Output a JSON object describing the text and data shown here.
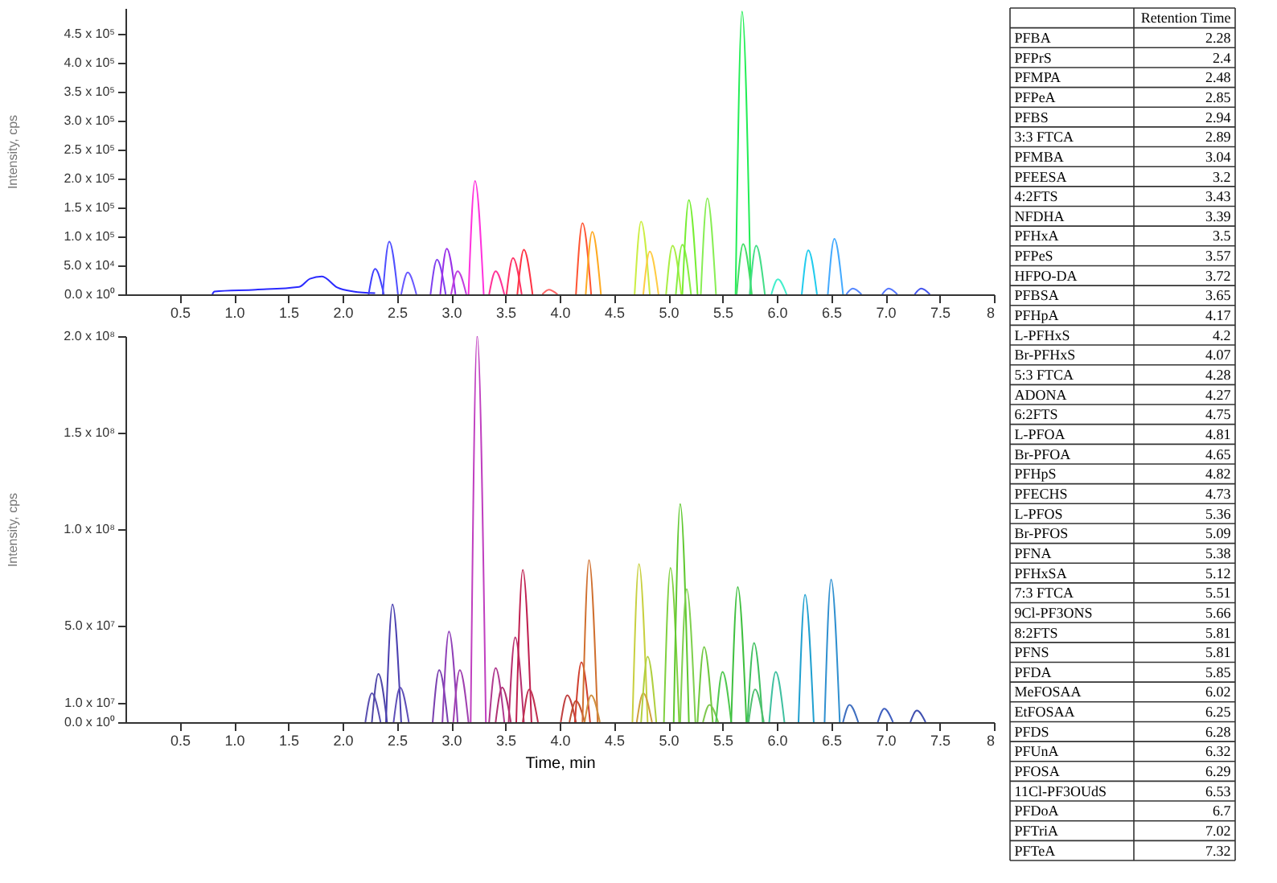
{
  "chart_data": [
    {
      "type": "line",
      "ylabel": "Intensity, cps",
      "xlim": [
        0,
        8
      ],
      "xticks": [
        0.5,
        {
          "value": 1,
          "label": "1.0"
        },
        1.5,
        {
          "value": 2,
          "label": "2.0"
        },
        2.5,
        {
          "value": 3,
          "label": "3.0"
        },
        3.5,
        {
          "value": 4,
          "label": "4.0"
        },
        4.5,
        {
          "value": 5,
          "label": "5.0"
        },
        5.5,
        {
          "value": 6,
          "label": "6.0"
        },
        6.5,
        {
          "value": 7,
          "label": "7.0"
        },
        7.5,
        8
      ],
      "ylim": [
        0,
        495000
      ],
      "yticks": [
        {
          "value": 0,
          "label": "0.0 x 10⁰"
        },
        {
          "value": 50000,
          "label": "5.0 x 10⁴"
        },
        {
          "value": 100000,
          "label": "1.0 x 10⁵"
        },
        {
          "value": 150000,
          "label": "1.5 x 10⁵"
        },
        {
          "value": 200000,
          "label": "2.0 x 10⁵"
        },
        {
          "value": 250000,
          "label": "2.5 x 10⁵"
        },
        {
          "value": 300000,
          "label": "3.0 x 10⁵"
        },
        {
          "value": 350000,
          "label": "3.5 x 10⁵"
        },
        {
          "value": 400000,
          "label": "4.0 x 10⁵"
        },
        {
          "value": 450000,
          "label": "4.5 x 10⁵"
        }
      ],
      "series": [
        {
          "color": "#2a2aff",
          "x": [
            0.8,
            0.82,
            1.2,
            1.6,
            1.7,
            1.81,
            1.95,
            2.1,
            2.3
          ],
          "values": [
            0,
            5000,
            8000,
            13000,
            27000,
            31000,
            12000,
            5000,
            2000
          ]
        },
        {
          "color": "#4040ff",
          "x": [
            2.24,
            2.3,
            2.38
          ],
          "values": [
            0,
            44000,
            0
          ]
        },
        {
          "color": "#5050ff",
          "x": [
            2.37,
            2.43,
            2.51
          ],
          "values": [
            0,
            91000,
            0
          ]
        },
        {
          "color": "#6a5aff",
          "x": [
            2.54,
            2.6,
            2.68
          ],
          "values": [
            0,
            38000,
            0
          ]
        },
        {
          "color": "#8040f0",
          "x": [
            2.81,
            2.87,
            2.95
          ],
          "values": [
            0,
            60000,
            0
          ]
        },
        {
          "color": "#9a30e8",
          "x": [
            2.9,
            2.96,
            3.04
          ],
          "values": [
            0,
            79000,
            0
          ]
        },
        {
          "color": "#c040e0",
          "x": [
            3,
            3.06,
            3.14
          ],
          "values": [
            0,
            40000,
            0
          ]
        },
        {
          "color": "#ff33dd",
          "x": [
            3.16,
            3.22,
            3.3
          ],
          "values": [
            0,
            196000,
            0
          ]
        },
        {
          "color": "#ff3399",
          "x": [
            3.35,
            3.41,
            3.49
          ],
          "values": [
            0,
            40000,
            0
          ]
        },
        {
          "color": "#ff3366",
          "x": [
            3.51,
            3.57,
            3.65
          ],
          "values": [
            0,
            63000,
            0
          ]
        },
        {
          "color": "#ff3344",
          "x": [
            3.61,
            3.67,
            3.75
          ],
          "values": [
            0,
            77000,
            0
          ]
        },
        {
          "color": "#ff6666",
          "x": [
            3.84,
            3.9,
            3.98
          ],
          "values": [
            0,
            8000,
            0
          ]
        },
        {
          "color": "#ff5533",
          "x": [
            4.15,
            4.21,
            4.29
          ],
          "values": [
            0,
            123000,
            0
          ]
        },
        {
          "color": "#ffaa22",
          "x": [
            4.24,
            4.3,
            4.38
          ],
          "values": [
            0,
            108000,
            0
          ]
        },
        {
          "color": "#ccee44",
          "x": [
            4.69,
            4.75,
            4.83
          ],
          "values": [
            0,
            126000,
            0
          ]
        },
        {
          "color": "#ffcc44",
          "x": [
            4.77,
            4.83,
            4.91
          ],
          "values": [
            0,
            74000,
            0
          ]
        },
        {
          "color": "#aaee44",
          "x": [
            4.98,
            5.04,
            5.12
          ],
          "values": [
            0,
            84000,
            0
          ]
        },
        {
          "color": "#88ee44",
          "x": [
            5.07,
            5.13,
            5.21
          ],
          "values": [
            0,
            86000,
            0
          ]
        },
        {
          "color": "#77ee33",
          "x": [
            5.13,
            5.19,
            5.27
          ],
          "values": [
            0,
            163000,
            0
          ]
        },
        {
          "color": "#88ee55",
          "x": [
            5.3,
            5.36,
            5.44
          ],
          "values": [
            0,
            166000,
            0
          ]
        },
        {
          "color": "#22ee55",
          "x": [
            5.62,
            5.68,
            5.76
          ],
          "values": [
            0,
            489000,
            0
          ]
        },
        {
          "color": "#44dd66",
          "x": [
            5.63,
            5.69,
            5.77
          ],
          "values": [
            0,
            87000,
            0
          ]
        },
        {
          "color": "#44dd88",
          "x": [
            5.75,
            5.81,
            5.89
          ],
          "values": [
            0,
            84000,
            0
          ]
        },
        {
          "color": "#44eecc",
          "x": [
            5.95,
            6.01,
            6.09
          ],
          "values": [
            0,
            26000,
            0
          ]
        },
        {
          "color": "#22ccee",
          "x": [
            6.23,
            6.29,
            6.37
          ],
          "values": [
            0,
            76000,
            0
          ]
        },
        {
          "color": "#44aaff",
          "x": [
            6.47,
            6.53,
            6.61
          ],
          "values": [
            0,
            96000,
            0
          ]
        },
        {
          "color": "#5588ff",
          "x": [
            6.64,
            6.7,
            6.78
          ],
          "values": [
            0,
            10000,
            0
          ]
        },
        {
          "color": "#5577ff",
          "x": [
            6.97,
            7.03,
            7.11
          ],
          "values": [
            0,
            10000,
            0
          ]
        },
        {
          "color": "#4455ee",
          "x": [
            7.27,
            7.33,
            7.41
          ],
          "values": [
            0,
            10000,
            0
          ]
        }
      ]
    },
    {
      "type": "line",
      "xlabel": "Time, min",
      "ylabel": "Intensity, cps",
      "xlim": [
        0,
        8
      ],
      "xticks": [
        0.5,
        {
          "value": 1,
          "label": "1.0"
        },
        1.5,
        {
          "value": 2,
          "label": "2.0"
        },
        2.5,
        {
          "value": 3,
          "label": "3.0"
        },
        3.5,
        {
          "value": 4,
          "label": "4.0"
        },
        4.5,
        {
          "value": 5,
          "label": "5.0"
        },
        5.5,
        {
          "value": 6,
          "label": "6.0"
        },
        6.5,
        {
          "value": 7,
          "label": "7.0"
        },
        7.5,
        8
      ],
      "ylim": [
        0,
        200000000
      ],
      "yticks": [
        {
          "value": 0,
          "label": "0.0 x 10⁰"
        },
        {
          "value": 10000000,
          "label": "1.0 x 10⁷"
        },
        {
          "value": 50000000,
          "label": "5.0 x 10⁷"
        },
        {
          "value": 100000000,
          "label": "1.0 x 10⁸"
        },
        {
          "value": 150000000,
          "label": "1.5 x 10⁸"
        },
        {
          "value": 200000000,
          "label": "2.0 x 10⁸"
        }
      ],
      "series": [
        {
          "color": "#5a50b0",
          "x": [
            2.21,
            2.27,
            2.35
          ],
          "values": [
            0,
            15000000,
            0
          ]
        },
        {
          "color": "#5048a8",
          "x": [
            2.27,
            2.33,
            2.41
          ],
          "values": [
            0,
            25000000,
            0
          ]
        },
        {
          "color": "#4a40b0",
          "x": [
            2.4,
            2.46,
            2.54
          ],
          "values": [
            0,
            61000000,
            0
          ]
        },
        {
          "color": "#6050b8",
          "x": [
            2.47,
            2.53,
            2.61
          ],
          "values": [
            0,
            18000000,
            0
          ]
        },
        {
          "color": "#7a40b0",
          "x": [
            2.83,
            2.89,
            2.97
          ],
          "values": [
            0,
            27000000,
            0
          ]
        },
        {
          "color": "#9040b8",
          "x": [
            2.92,
            2.98,
            3.06
          ],
          "values": [
            0,
            47000000,
            0
          ]
        },
        {
          "color": "#a040b0",
          "x": [
            3.02,
            3.08,
            3.16
          ],
          "values": [
            0,
            27000000,
            0
          ]
        },
        {
          "color": "#c040c0",
          "x": [
            3.18,
            3.24,
            3.32
          ],
          "values": [
            0,
            200000000,
            0
          ]
        },
        {
          "color": "#b03a90",
          "x": [
            3.35,
            3.41,
            3.49
          ],
          "values": [
            0,
            28000000,
            0
          ]
        },
        {
          "color": "#b03070",
          "x": [
            3.41,
            3.47,
            3.55
          ],
          "values": [
            0,
            18000000,
            0
          ]
        },
        {
          "color": "#b83070",
          "x": [
            3.53,
            3.59,
            3.67
          ],
          "values": [
            0,
            44000000,
            0
          ]
        },
        {
          "color": "#c02050",
          "x": [
            3.6,
            3.66,
            3.74
          ],
          "values": [
            0,
            79000000,
            0
          ]
        },
        {
          "color": "#c03050",
          "x": [
            3.66,
            3.72,
            3.8
          ],
          "values": [
            0,
            17000000,
            0
          ]
        },
        {
          "color": "#c04040",
          "x": [
            4.01,
            4.07,
            4.15
          ],
          "values": [
            0,
            14000000,
            0
          ]
        },
        {
          "color": "#c05030",
          "x": [
            4.09,
            4.15,
            4.23
          ],
          "values": [
            0,
            11000000,
            0
          ]
        },
        {
          "color": "#d04030",
          "x": [
            4.14,
            4.2,
            4.28
          ],
          "values": [
            0,
            31000000,
            0
          ]
        },
        {
          "color": "#d07030",
          "x": [
            4.21,
            4.27,
            4.35
          ],
          "values": [
            0,
            84000000,
            0
          ]
        },
        {
          "color": "#d09040",
          "x": [
            4.23,
            4.29,
            4.37
          ],
          "values": [
            0,
            14000000,
            0
          ]
        },
        {
          "color": "#c8d040",
          "x": [
            4.67,
            4.73,
            4.81
          ],
          "values": [
            0,
            82000000,
            0
          ]
        },
        {
          "color": "#d0a040",
          "x": [
            4.71,
            4.77,
            4.85
          ],
          "values": [
            0,
            15000000,
            0
          ]
        },
        {
          "color": "#b0d040",
          "x": [
            4.75,
            4.81,
            4.89
          ],
          "values": [
            0,
            34000000,
            0
          ]
        },
        {
          "color": "#80d040",
          "x": [
            4.96,
            5.02,
            5.1
          ],
          "values": [
            0,
            80000000,
            0
          ]
        },
        {
          "color": "#60c830",
          "x": [
            5.05,
            5.11,
            5.19
          ],
          "values": [
            0,
            113000000,
            0
          ]
        },
        {
          "color": "#80d050",
          "x": [
            5.11,
            5.17,
            5.25
          ],
          "values": [
            0,
            69000000,
            0
          ]
        },
        {
          "color": "#70c840",
          "x": [
            5.27,
            5.33,
            5.41
          ],
          "values": [
            0,
            39000000,
            0
          ]
        },
        {
          "color": "#80c850",
          "x": [
            5.32,
            5.38,
            5.46
          ],
          "values": [
            0,
            9000000,
            0
          ]
        },
        {
          "color": "#50c850",
          "x": [
            5.44,
            5.5,
            5.58
          ],
          "values": [
            0,
            26000000,
            0
          ]
        },
        {
          "color": "#40c040",
          "x": [
            5.58,
            5.64,
            5.72
          ],
          "values": [
            0,
            70000000,
            0
          ]
        },
        {
          "color": "#40c060",
          "x": [
            5.73,
            5.79,
            5.87
          ],
          "values": [
            0,
            41000000,
            0
          ]
        },
        {
          "color": "#50c070",
          "x": [
            5.74,
            5.8,
            5.88
          ],
          "values": [
            0,
            17000000,
            0
          ]
        },
        {
          "color": "#40c0a0",
          "x": [
            5.93,
            5.99,
            6.07
          ],
          "values": [
            0,
            26000000,
            0
          ]
        },
        {
          "color": "#20a0d0",
          "x": [
            6.2,
            6.26,
            6.34
          ],
          "values": [
            0,
            66000000,
            0
          ]
        },
        {
          "color": "#3090d0",
          "x": [
            6.44,
            6.5,
            6.58
          ],
          "values": [
            0,
            74000000,
            0
          ]
        },
        {
          "color": "#4070c0",
          "x": [
            6.61,
            6.67,
            6.75
          ],
          "values": [
            0,
            9000000,
            0
          ]
        },
        {
          "color": "#4060c0",
          "x": [
            6.93,
            6.99,
            7.07
          ],
          "values": [
            0,
            7000000,
            0
          ]
        },
        {
          "color": "#4050b0",
          "x": [
            7.23,
            7.29,
            7.37
          ],
          "values": [
            0,
            6000000,
            0
          ]
        }
      ]
    },
    {
      "type": "other",
      "title": "Retention Time",
      "data_labels": true,
      "categories": [
        "PFBA",
        "PFPrS",
        "PFMPA",
        "PFPeA",
        "PFBS",
        "3:3 FTCA",
        "PFMBA",
        "PFEESA",
        "4:2FTS",
        "NFDHA",
        "PFHxA",
        "PFPeS",
        "HFPO-DA",
        "PFBSA",
        "PFHpA",
        "L-PFHxS",
        "Br-PFHxS",
        "5:3 FTCA",
        "ADONA",
        "6:2FTS",
        "L-PFOA",
        "Br-PFOA",
        "PFHpS",
        "PFECHS",
        "L-PFOS",
        "Br-PFOS",
        "PFNA",
        "PFHxSA",
        "7:3 FTCA",
        "9Cl-PF3ONS",
        "8:2FTS",
        "PFNS",
        "PFDA",
        "MeFOSAA",
        "EtFOSAA",
        "PFDS",
        "PFUnA",
        "PFOSA",
        "11Cl-PF3OUdS",
        "PFDoA",
        "PFTriA",
        "PFTeA"
      ],
      "values": [
        2.28,
        2.4,
        2.48,
        2.85,
        2.94,
        2.89,
        3.04,
        3.2,
        3.43,
        3.39,
        3.5,
        3.57,
        3.72,
        3.65,
        4.17,
        4.2,
        4.07,
        4.28,
        4.27,
        4.75,
        4.81,
        4.65,
        4.82,
        4.73,
        5.36,
        5.09,
        5.38,
        5.12,
        5.51,
        5.66,
        5.81,
        5.81,
        5.85,
        6.02,
        6.25,
        6.28,
        6.32,
        6.29,
        6.53,
        6.7,
        7.02,
        7.32
      ]
    }
  ]
}
